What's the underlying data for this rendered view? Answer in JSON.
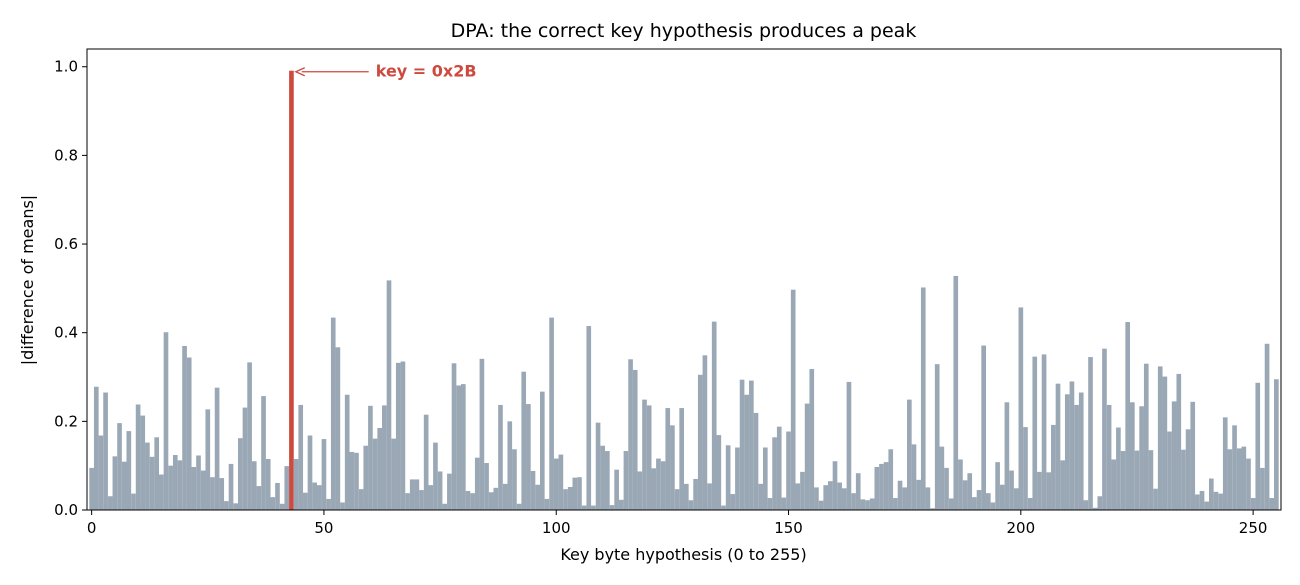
{
  "chart_data": {
    "type": "bar",
    "title": "DPA: the correct key hypothesis produces a peak",
    "xlabel": "Key byte hypothesis (0 to 255)",
    "ylabel": "|difference of means|",
    "xlim": [
      -1,
      256
    ],
    "ylim": [
      0,
      1.04
    ],
    "xticks": [
      0,
      50,
      100,
      150,
      200,
      250
    ],
    "yticks": [
      0.0,
      0.2,
      0.4,
      0.6,
      0.8,
      1.0
    ],
    "ytick_labels": [
      "0.0",
      "0.2",
      "0.4",
      "0.6",
      "0.8",
      "1.0"
    ],
    "grid": false,
    "colors": {
      "bars": "#9aa7b5",
      "highlight": "#cc4a3e"
    },
    "highlight": {
      "index": 43,
      "label": "key = 0x2B"
    },
    "x": "0..255 (one bar per key hypothesis)",
    "values": [
      0.095,
      0.278,
      0.168,
      0.265,
      0.031,
      0.121,
      0.196,
      0.109,
      0.178,
      0.037,
      0.238,
      0.213,
      0.152,
      0.12,
      0.164,
      0.08,
      0.401,
      0.1,
      0.124,
      0.112,
      0.37,
      0.344,
      0.097,
      0.123,
      0.089,
      0.227,
      0.074,
      0.276,
      0.072,
      0.02,
      0.104,
      0.015,
      0.162,
      0.231,
      0.333,
      0.11,
      0.054,
      0.257,
      0.115,
      0.029,
      0.061,
      0.014,
      0.099,
      0.991,
      0.115,
      0.237,
      0.039,
      0.168,
      0.062,
      0.056,
      0.16,
      0.025,
      0.434,
      0.367,
      0.017,
      0.26,
      0.131,
      0.129,
      0.047,
      0.145,
      0.235,
      0.161,
      0.185,
      0.236,
      0.518,
      0.161,
      0.332,
      0.335,
      0.038,
      0.069,
      0.069,
      0.045,
      0.215,
      0.056,
      0.152,
      0.087,
      0.014,
      0.082,
      0.331,
      0.281,
      0.284,
      0.043,
      0.038,
      0.118,
      0.341,
      0.106,
      0.04,
      0.05,
      0.237,
      0.059,
      0.2,
      0.137,
      0.014,
      0.312,
      0.239,
      0.088,
      0.057,
      0.267,
      0.025,
      0.434,
      0.116,
      0.125,
      0.047,
      0.052,
      0.073,
      0.074,
      0.01,
      0.415,
      0.01,
      0.197,
      0.145,
      0.133,
      0.011,
      0.091,
      0.023,
      0.133,
      0.34,
      0.316,
      0.087,
      0.249,
      0.236,
      0.094,
      0.116,
      0.11,
      0.23,
      0.191,
      0.047,
      0.23,
      0.059,
      0.022,
      0.07,
      0.305,
      0.349,
      0.06,
      0.425,
      0.169,
      0.01,
      0.146,
      0.036,
      0.141,
      0.294,
      0.26,
      0.292,
      0.219,
      0.059,
      0.141,
      0.027,
      0.164,
      0.188,
      0.028,
      0.177,
      0.497,
      0.06,
      0.086,
      0.24,
      0.318,
      0.051,
      0.021,
      0.056,
      0.065,
      0.11,
      0.062,
      0.049,
      0.289,
      0.038,
      0.083,
      0.024,
      0.022,
      0.026,
      0.097,
      0.104,
      0.108,
      0.137,
      0.027,
      0.066,
      0.051,
      0.249,
      0.148,
      0.068,
      0.502,
      0.051,
      0.004,
      0.329,
      0.143,
      0.095,
      0.026,
      0.528,
      0.114,
      0.067,
      0.083,
      0.029,
      0.045,
      0.371,
      0.038,
      0.017,
      0.108,
      0.057,
      0.243,
      0.089,
      0.049,
      0.457,
      0.187,
      0.027,
      0.346,
      0.086,
      0.351,
      0.085,
      0.192,
      0.285,
      0.112,
      0.261,
      0.29,
      0.237,
      0.265,
      0.022,
      0.345,
      0.005,
      0.031,
      0.364,
      0.237,
      0.114,
      0.186,
      0.133,
      0.424,
      0.243,
      0.134,
      0.234,
      0.33,
      0.135,
      0.048,
      0.324,
      0.301,
      0.177,
      0.245,
      0.307,
      0.136,
      0.182,
      0.244,
      0.035,
      0.043,
      0.019,
      0.071,
      0.041,
      0.037,
      0.209,
      0.137,
      0.191,
      0.139,
      0.143,
      0.116,
      0.027,
      0.287,
      0.095,
      0.375,
      0.027,
      0.295
    ]
  }
}
